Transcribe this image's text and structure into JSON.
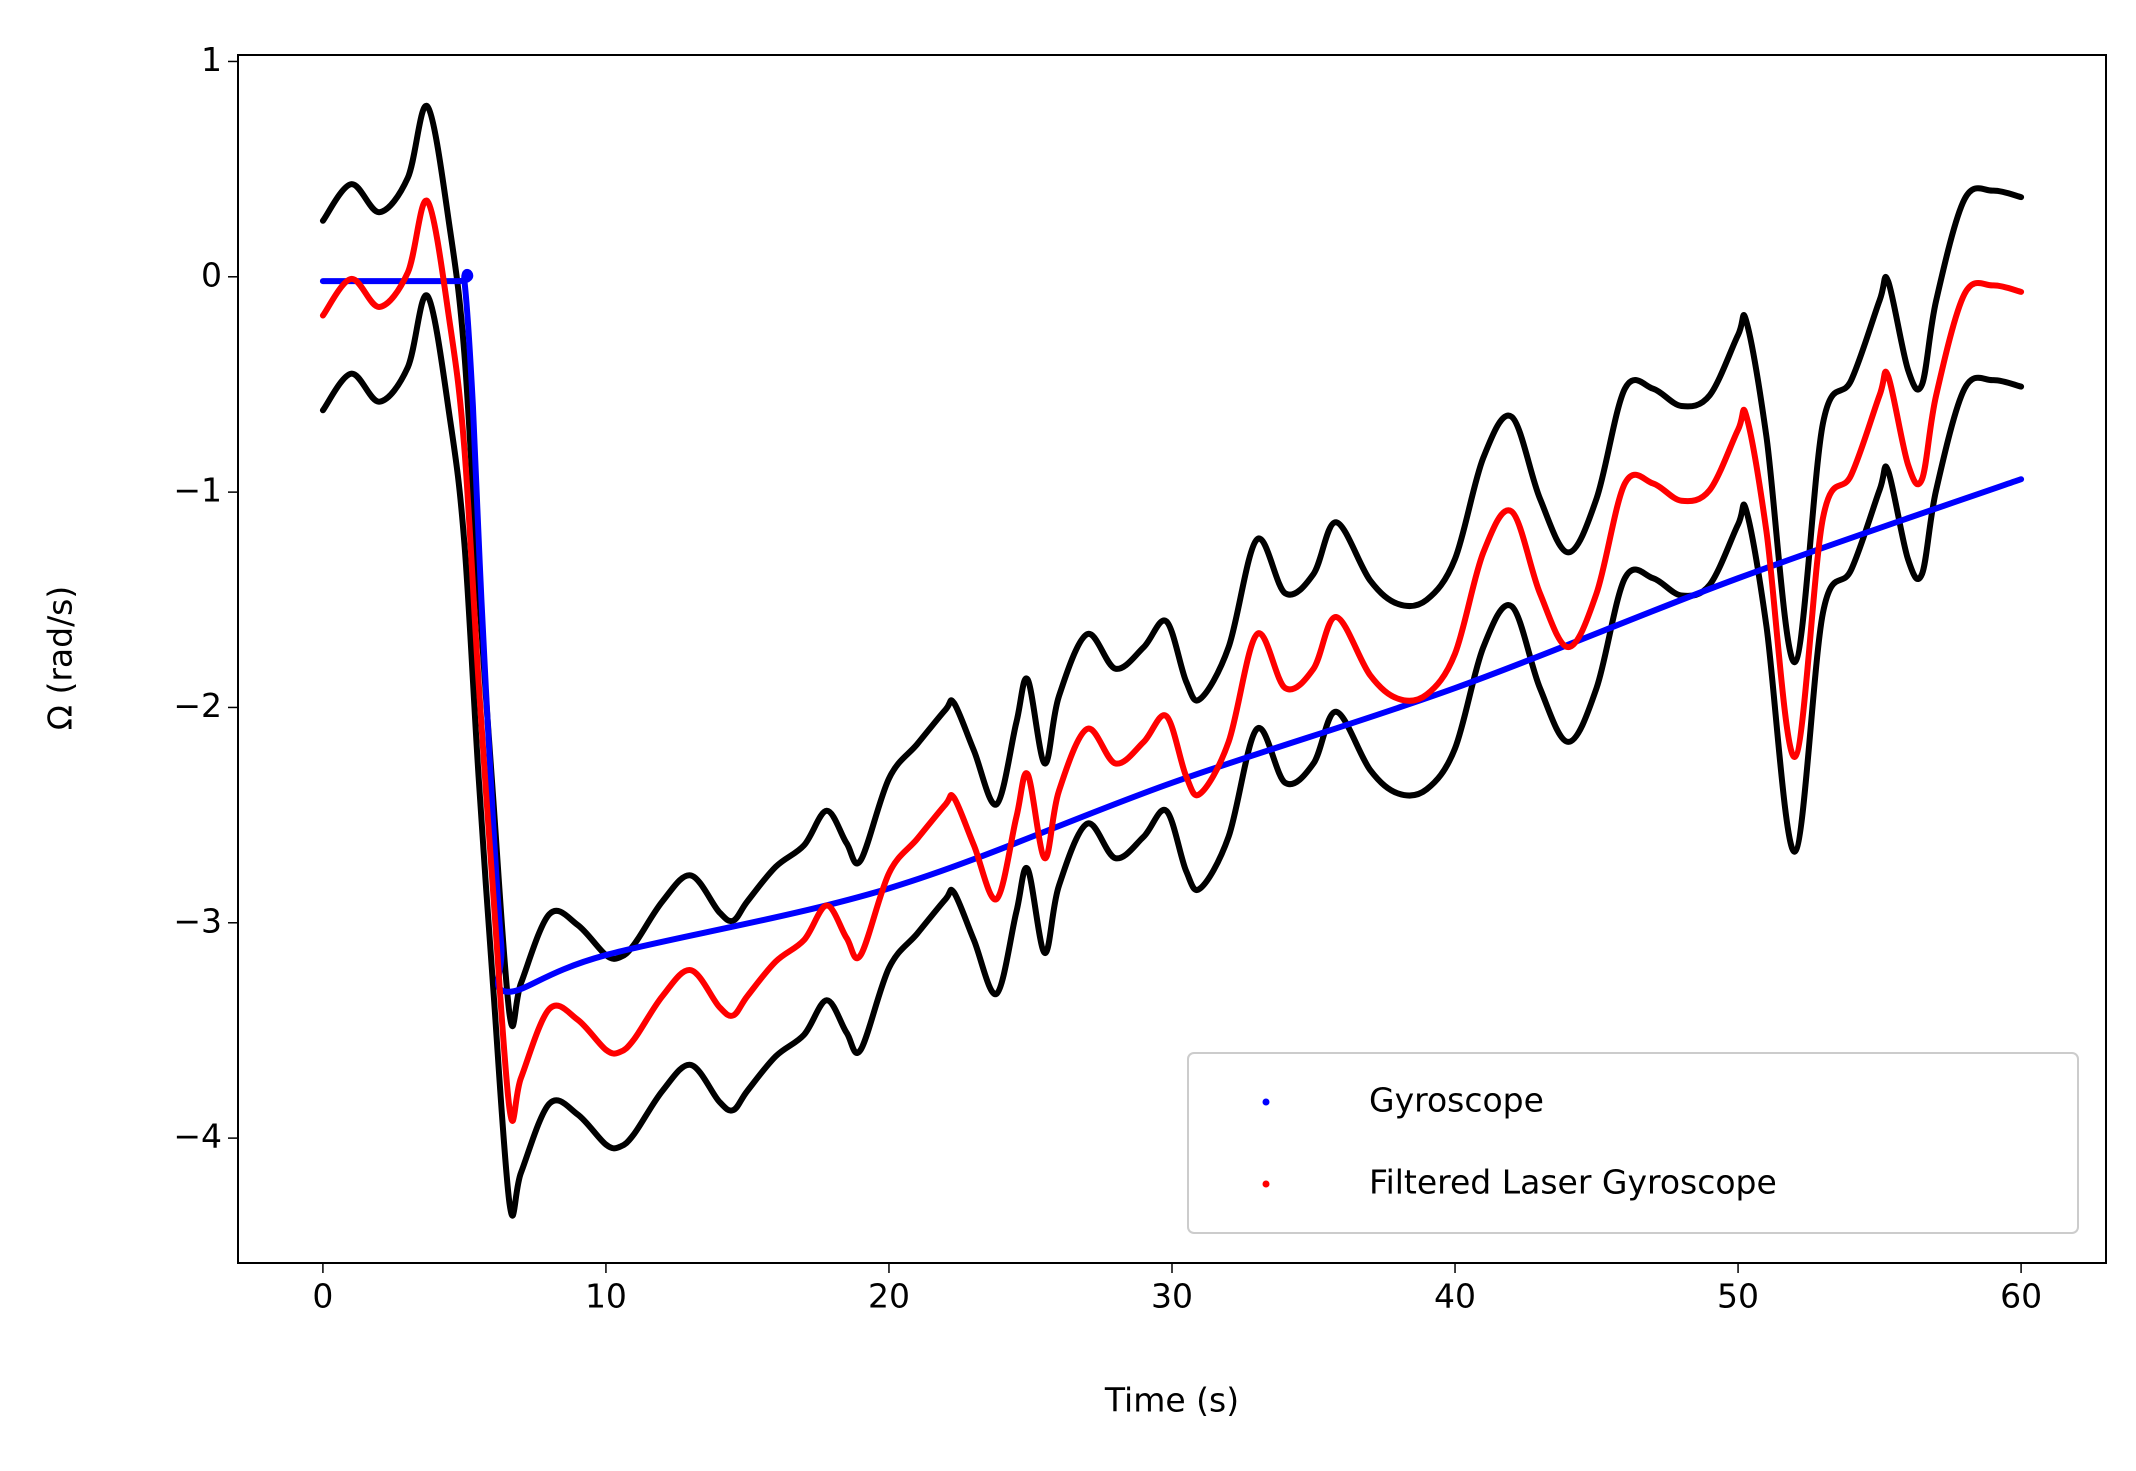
{
  "chart_data": {
    "type": "line",
    "xlabel": "Time (s)",
    "ylabel": "Ω (rad/s)",
    "xlim": [
      -3,
      63
    ],
    "ylim": [
      -4.58,
      1.03
    ],
    "xticks": [
      0,
      10,
      20,
      30,
      40,
      50,
      60
    ],
    "yticks": [
      {
        "value": -4,
        "label": "−4"
      },
      {
        "value": -3,
        "label": "−3"
      },
      {
        "value": -2,
        "label": "−2"
      },
      {
        "value": -1,
        "label": "−1"
      },
      0,
      1
    ],
    "legend": "lower right",
    "series": [
      {
        "color": "#000000",
        "x": [
          0,
          1,
          2,
          3,
          3.7,
          4.5,
          5,
          5.5,
          6,
          6.6,
          7,
          8,
          9,
          10,
          10.5,
          11,
          12,
          13,
          14,
          14.5,
          15,
          16,
          17,
          17.8,
          18.5,
          19,
          20,
          21,
          22,
          22.3,
          23,
          23.8,
          24.5,
          24.9,
          25.5,
          26,
          27,
          28,
          29,
          29.8,
          30.5,
          31,
          32,
          33,
          34,
          35,
          35.8,
          37,
          38,
          39,
          40,
          41,
          42,
          43,
          44,
          45,
          46,
          47,
          48,
          49,
          50,
          50.3,
          51,
          52,
          53,
          54,
          55,
          55.3,
          56,
          56.5,
          57,
          58,
          59,
          60
        ],
        "values": [
          0.26,
          0.43,
          0.3,
          0.46,
          0.79,
          0.21,
          -0.36,
          -1.44,
          -2.39,
          -3.43,
          -3.28,
          -2.96,
          -3.01,
          -3.15,
          -3.16,
          -3.1,
          -2.9,
          -2.78,
          -2.95,
          -2.99,
          -2.9,
          -2.74,
          -2.64,
          -2.48,
          -2.63,
          -2.71,
          -2.33,
          -2.17,
          -2.01,
          -1.98,
          -2.2,
          -2.45,
          -2.07,
          -1.87,
          -2.26,
          -1.95,
          -1.66,
          -1.82,
          -1.72,
          -1.6,
          -1.88,
          -1.96,
          -1.72,
          -1.22,
          -1.47,
          -1.38,
          -1.14,
          -1.41,
          -1.52,
          -1.5,
          -1.31,
          -0.84,
          -0.65,
          -1.03,
          -1.28,
          -1.03,
          -0.52,
          -0.52,
          -0.6,
          -0.55,
          -0.27,
          -0.21,
          -0.74,
          -1.79,
          -0.68,
          -0.48,
          -0.11,
          -0.02,
          -0.43,
          -0.5,
          -0.11,
          0.36,
          0.4,
          0.37
        ]
      },
      {
        "color": "#000000",
        "x": [
          0,
          1,
          2,
          3,
          3.7,
          4.5,
          5,
          5.5,
          6,
          6.6,
          7,
          8,
          9,
          10,
          10.5,
          11,
          12,
          13,
          14,
          14.5,
          15,
          16,
          17,
          17.8,
          18.5,
          19,
          20,
          21,
          22,
          22.3,
          23,
          23.8,
          24.5,
          24.9,
          25.5,
          26,
          27,
          28,
          29,
          29.8,
          30.5,
          31,
          32,
          33,
          34,
          35,
          35.8,
          37,
          38,
          39,
          40,
          41,
          42,
          43,
          44,
          45,
          46,
          47,
          48,
          49,
          50,
          50.3,
          51,
          52,
          53,
          54,
          55,
          55.3,
          56,
          56.5,
          57,
          58,
          59,
          60
        ],
        "values": [
          -0.62,
          -0.45,
          -0.58,
          -0.42,
          -0.09,
          -0.67,
          -1.24,
          -2.32,
          -3.27,
          -4.31,
          -4.16,
          -3.84,
          -3.89,
          -4.03,
          -4.04,
          -3.98,
          -3.78,
          -3.66,
          -3.83,
          -3.87,
          -3.78,
          -3.62,
          -3.52,
          -3.36,
          -3.51,
          -3.59,
          -3.21,
          -3.05,
          -2.89,
          -2.86,
          -3.08,
          -3.33,
          -2.95,
          -2.75,
          -3.14,
          -2.83,
          -2.54,
          -2.7,
          -2.6,
          -2.48,
          -2.76,
          -2.84,
          -2.6,
          -2.1,
          -2.35,
          -2.26,
          -2.02,
          -2.29,
          -2.4,
          -2.38,
          -2.19,
          -1.72,
          -1.53,
          -1.91,
          -2.16,
          -1.91,
          -1.4,
          -1.4,
          -1.48,
          -1.43,
          -1.15,
          -1.09,
          -1.62,
          -2.67,
          -1.56,
          -1.36,
          -0.99,
          -0.9,
          -1.31,
          -1.38,
          -0.99,
          -0.52,
          -0.48,
          -0.51
        ]
      },
      {
        "name": "Gyroscope",
        "color": "#0000ff",
        "x": [
          0,
          4.8,
          5.0,
          5.3,
          5.6,
          6,
          6.3,
          6.5,
          10,
          20,
          30,
          40,
          50,
          60
        ],
        "values": [
          -0.02,
          -0.02,
          -0.02,
          -0.6,
          -1.5,
          -2.5,
          -3.1,
          -3.32,
          -3.15,
          -2.84,
          -2.35,
          -1.91,
          -1.4,
          -0.94
        ]
      },
      {
        "name": "Filtered Laser Gyroscope",
        "color": "#ff0000",
        "x": [
          0,
          1,
          2,
          3,
          3.7,
          4.5,
          5,
          5.5,
          6,
          6.6,
          7,
          8,
          9,
          10,
          10.5,
          11,
          12,
          13,
          14,
          14.5,
          15,
          16,
          17,
          17.8,
          18.5,
          19,
          20,
          21,
          22,
          22.3,
          23,
          23.8,
          24.5,
          24.9,
          25.5,
          26,
          27,
          28,
          29,
          29.8,
          30.5,
          31,
          32,
          33,
          34,
          35,
          35.8,
          37,
          38,
          39,
          40,
          41,
          42,
          43,
          44,
          45,
          46,
          47,
          48,
          49,
          50,
          50.3,
          51,
          52,
          53,
          54,
          55,
          55.3,
          56,
          56.5,
          57,
          58,
          59,
          60
        ],
        "values": [
          -0.18,
          -0.01,
          -0.14,
          0.02,
          0.35,
          -0.23,
          -0.8,
          -1.88,
          -2.83,
          -3.87,
          -3.72,
          -3.4,
          -3.45,
          -3.59,
          -3.6,
          -3.54,
          -3.34,
          -3.22,
          -3.39,
          -3.43,
          -3.34,
          -3.18,
          -3.08,
          -2.92,
          -3.07,
          -3.15,
          -2.77,
          -2.61,
          -2.45,
          -2.42,
          -2.64,
          -2.89,
          -2.51,
          -2.31,
          -2.7,
          -2.39,
          -2.1,
          -2.26,
          -2.16,
          -2.04,
          -2.32,
          -2.4,
          -2.16,
          -1.66,
          -1.91,
          -1.82,
          -1.58,
          -1.85,
          -1.96,
          -1.94,
          -1.75,
          -1.28,
          -1.09,
          -1.47,
          -1.72,
          -1.47,
          -0.96,
          -0.96,
          -1.04,
          -0.99,
          -0.71,
          -0.65,
          -1.18,
          -2.23,
          -1.12,
          -0.92,
          -0.55,
          -0.46,
          -0.87,
          -0.94,
          -0.55,
          -0.08,
          -0.04,
          -0.07
        ]
      }
    ]
  }
}
